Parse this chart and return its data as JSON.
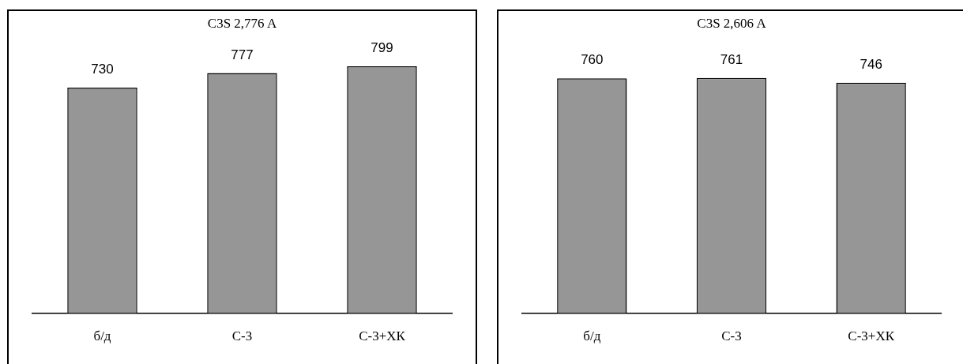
{
  "chart_data": [
    {
      "type": "bar",
      "title": "C3S 2,776 A",
      "categories": [
        "б/д",
        "С-3",
        "С-3+ХК"
      ],
      "values": [
        730,
        777,
        799
      ],
      "color": "#969696",
      "data_labels": true,
      "grid": false,
      "legend": false,
      "tick_labels": "x"
    },
    {
      "type": "bar",
      "title": "C3S 2,606 A",
      "categories": [
        "б/д",
        "С-3",
        "С-3+ХК"
      ],
      "values": [
        760,
        761,
        746
      ],
      "color": "#969696",
      "data_labels": true,
      "grid": false,
      "legend": false,
      "tick_labels": "x"
    }
  ]
}
